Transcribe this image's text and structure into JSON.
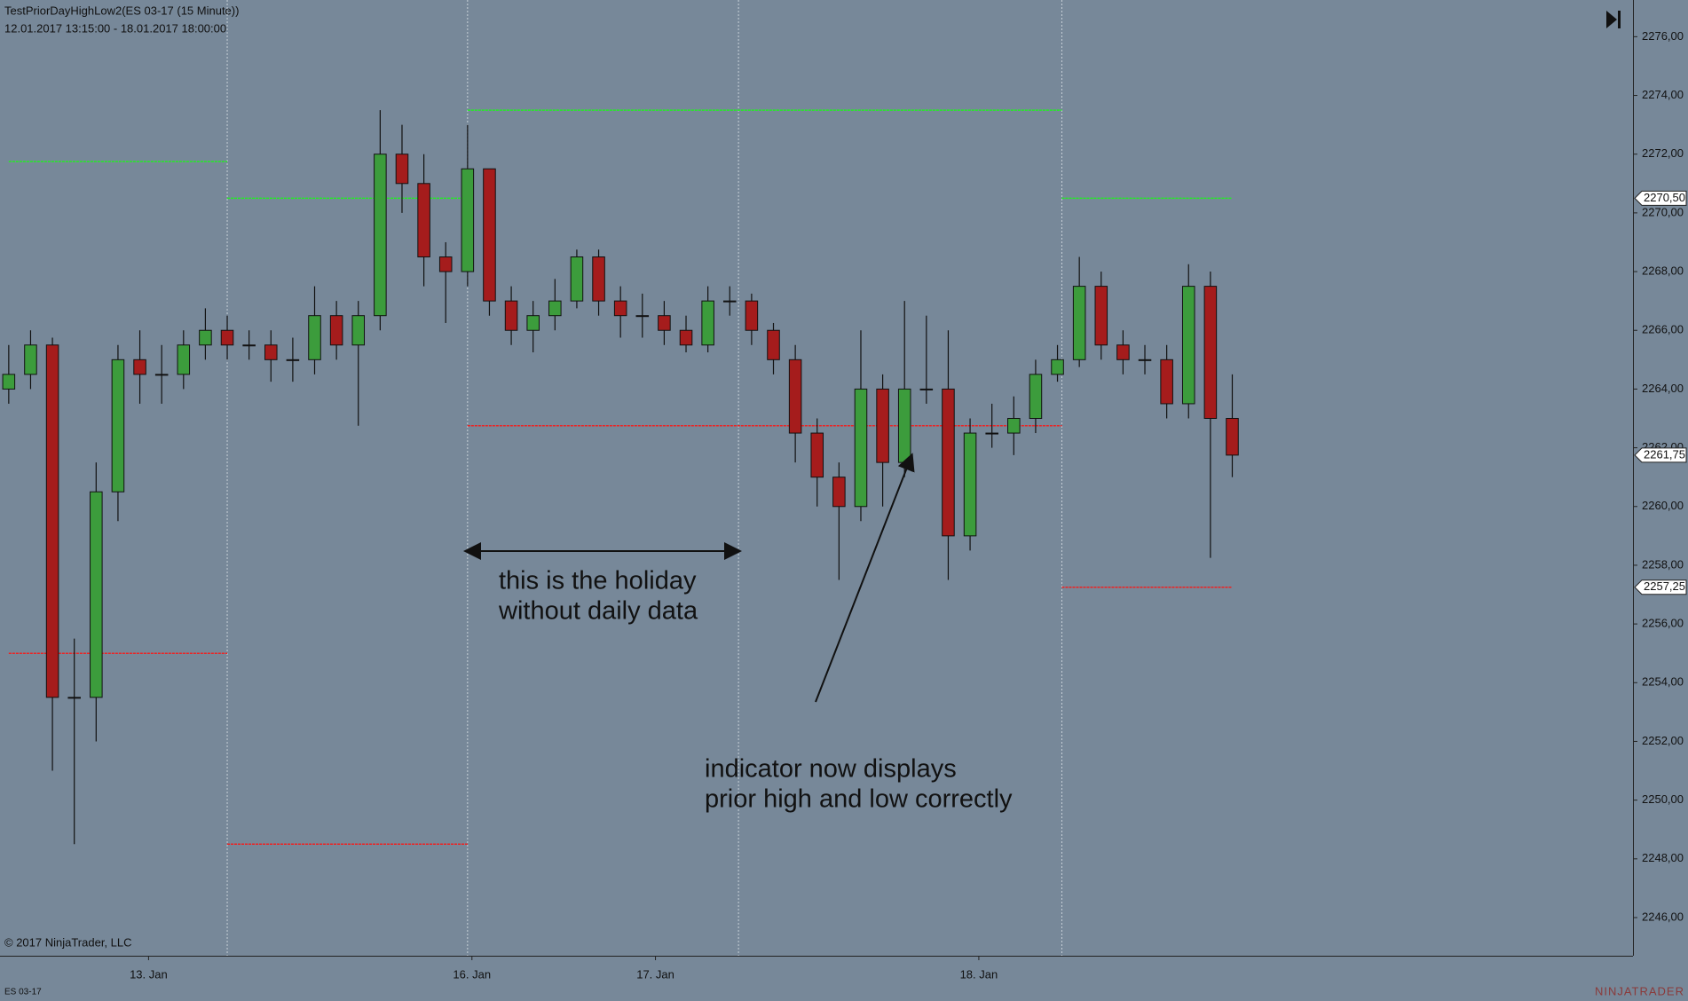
{
  "chart_data": {
    "type": "candlestick",
    "title": "TestPriorDayHighLow2(ES 03-17 (15 Minute))",
    "subtitle": "12.01.2017 13:15:00 - 18.01.2017 18:00:00",
    "copyright": "© 2017 NinjaTrader, LLC",
    "instrument": "ES 03-17",
    "brand": "NINJATRADER",
    "up_color": "#3c9c3c",
    "down_color": "#a51c1c",
    "grid": false,
    "xlim": [
      -2,
      371.7
    ],
    "ylim": [
      2244.7,
      2277.25
    ],
    "xticks": [
      {
        "value": 32,
        "label": "13. Jan"
      },
      {
        "value": 106,
        "label": "16. Jan"
      },
      {
        "value": 148,
        "label": "17. Jan"
      },
      {
        "value": 222,
        "label": "18. Jan"
      }
    ],
    "yticks": [
      {
        "value": 2246,
        "label": "2246,00"
      },
      {
        "value": 2248,
        "label": "2248,00"
      },
      {
        "value": 2250,
        "label": "2250,00"
      },
      {
        "value": 2252,
        "label": "2252,00"
      },
      {
        "value": 2254,
        "label": "2254,00"
      },
      {
        "value": 2256,
        "label": "2256,00"
      },
      {
        "value": 2258,
        "label": "2258,00"
      },
      {
        "value": 2260,
        "label": "2260,00"
      },
      {
        "value": 2262,
        "label": "2262,00"
      },
      {
        "value": 2264,
        "label": "2264,00"
      },
      {
        "value": 2266,
        "label": "2266,00"
      },
      {
        "value": 2268,
        "label": "2268,00"
      },
      {
        "value": 2270,
        "label": "2270,00"
      },
      {
        "value": 2272,
        "label": "2272,00"
      },
      {
        "value": 2274,
        "label": "2274,00"
      },
      {
        "value": 2276,
        "label": "2276,00"
      }
    ],
    "session_breaks": [
      50,
      105,
      167,
      241
    ],
    "x": [
      0,
      5,
      10,
      15,
      20,
      25,
      30,
      35,
      40,
      45,
      50,
      55,
      60,
      65,
      70,
      75,
      80,
      85,
      90,
      95,
      100,
      105,
      110,
      115,
      120,
      125,
      130,
      135,
      140,
      145,
      150,
      155,
      160,
      165,
      170,
      175,
      180,
      185,
      190,
      195,
      200,
      205,
      210,
      215,
      220,
      225,
      230,
      235,
      240,
      245,
      250,
      255,
      260,
      265,
      270,
      275,
      280
    ],
    "open": [
      2264,
      2264.5,
      2265.5,
      2253.5,
      2253.5,
      2260.5,
      2265,
      2264.5,
      2264.5,
      2265.5,
      2266,
      2265.5,
      2265.5,
      2265,
      2265,
      2266.5,
      2265.5,
      2266.5,
      2272,
      2271,
      2268.5,
      2268,
      2271.5,
      2267,
      2266,
      2266.5,
      2267,
      2268.5,
      2267,
      2266.5,
      2266.5,
      2266,
      2265.5,
      2267,
      2267,
      2266,
      2265,
      2262.5,
      2261,
      2260,
      2264,
      2261.5,
      2264,
      2264,
      2259,
      2262.5,
      2262.5,
      2263,
      2264.5,
      2265,
      2267.5,
      2265.5,
      2265,
      2265,
      2263.5,
      2267.5,
      2263
    ],
    "high": [
      2265.5,
      2266,
      2265.75,
      2255.5,
      2261.5,
      2265.5,
      2266,
      2265.5,
      2266,
      2266.75,
      2266.5,
      2266,
      2266,
      2265.75,
      2267.5,
      2267,
      2267,
      2273.5,
      2273,
      2272,
      2269,
      2273,
      2271.5,
      2267.5,
      2267,
      2267.75,
      2268.75,
      2268.75,
      2267.5,
      2267.25,
      2267,
      2266.5,
      2267.5,
      2267.5,
      2267.25,
      2266.25,
      2265.5,
      2263,
      2261.5,
      2266,
      2264.5,
      2267,
      2266.5,
      2266,
      2263,
      2263.5,
      2263.75,
      2265,
      2265.5,
      2268.5,
      2268,
      2266,
      2265.5,
      2265.5,
      2268.25,
      2268,
      2264.5
    ],
    "low": [
      2263.5,
      2264,
      2251,
      2248.5,
      2252,
      2259.5,
      2263.5,
      2263.5,
      2264,
      2265,
      2265,
      2265,
      2264.25,
      2264.25,
      2264.5,
      2265,
      2262.75,
      2266,
      2270,
      2267.5,
      2266.25,
      2267.5,
      2266.5,
      2265.5,
      2265.25,
      2266,
      2266.75,
      2266.5,
      2265.75,
      2265.75,
      2265.5,
      2265.25,
      2265.25,
      2266.5,
      2265.5,
      2264.5,
      2261.5,
      2260,
      2257.5,
      2259.5,
      2260,
      2261,
      2263.5,
      2257.5,
      2258.5,
      2262,
      2261.75,
      2262.5,
      2264.25,
      2264.75,
      2265,
      2264.5,
      2264.5,
      2263,
      2263,
      2258.25,
      2261
    ],
    "close": [
      2264.5,
      2265.5,
      2253.5,
      2253.5,
      2260.5,
      2265,
      2264.5,
      2264.5,
      2265.5,
      2266,
      2265.5,
      2265.5,
      2265,
      2265,
      2266.5,
      2265.5,
      2266.5,
      2272,
      2271,
      2268.5,
      2268,
      2271.5,
      2267,
      2266,
      2266.5,
      2267,
      2268.5,
      2267,
      2266.5,
      2266.5,
      2266,
      2265.5,
      2267,
      2267,
      2266,
      2265,
      2262.5,
      2261,
      2260,
      2264,
      2261.5,
      2264,
      2264,
      2259,
      2262.5,
      2262.5,
      2263,
      2264.5,
      2265,
      2267.5,
      2265.5,
      2265,
      2265,
      2263.5,
      2267.5,
      2263,
      2261.75
    ],
    "high_color": "#22ee22",
    "low_color": "#ee2222",
    "high_levels": [
      {
        "start": 0,
        "end": 50,
        "value": 2271.75
      },
      {
        "start": 50,
        "end": 105,
        "value": 2270.5
      },
      {
        "start": 105,
        "end": 241,
        "value": 2273.5
      },
      {
        "start": 241,
        "end": 280,
        "value": 2270.5
      }
    ],
    "low_levels": [
      {
        "start": 0,
        "end": 50,
        "value": 2255
      },
      {
        "start": 50,
        "end": 105,
        "value": 2248.5
      },
      {
        "start": 105,
        "end": 241,
        "value": 2262.75
      },
      {
        "start": 241,
        "end": 280,
        "value": 2257.25
      }
    ],
    "price_markers": [
      {
        "value": 2270.5,
        "label": "2270,50"
      },
      {
        "value": 2261.75,
        "label": "2261,75"
      },
      {
        "value": 2257.25,
        "label": "2257,25"
      }
    ],
    "annotations": [
      {
        "lines": [
          "this is the holiday",
          "without daily data"
        ]
      },
      {
        "lines": [
          "indicator now displays",
          "prior high and low correctly"
        ]
      }
    ]
  }
}
